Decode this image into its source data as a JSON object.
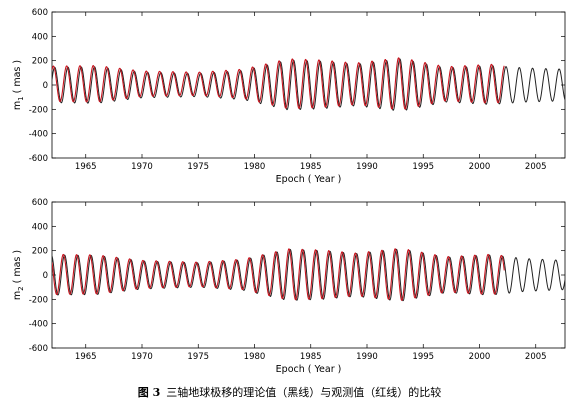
{
  "caption": {
    "figure_number": "图 3",
    "text": "三轴地球极移的理论值（黑线）与观测值（红线）的比较"
  },
  "series_colors": {
    "theoretical": "#222222",
    "observed": "#c8141e"
  },
  "chart_data": [
    {
      "type": "line",
      "title": "",
      "xlabel": "Epoch ( Year )",
      "ylabel": "m1 ( mas )",
      "ylabel_main": "m",
      "ylabel_sub": "1",
      "ylabel_unit": " ( mas )",
      "xlim": [
        1962,
        2007.6
      ],
      "ylim": [
        -600,
        600
      ],
      "xticks": [
        1965,
        1970,
        1975,
        1980,
        1985,
        1990,
        1995,
        2000,
        2005
      ],
      "yticks": [
        -600,
        -400,
        -200,
        0,
        200,
        400,
        600
      ],
      "grid": false,
      "legend": "none",
      "series": [
        {
          "key": "theoretical",
          "x_range": [
            1962,
            2007.6
          ],
          "envelope_x": [
            1962,
            1966,
            1970,
            1975,
            1979,
            1983,
            1986,
            1989,
            1993,
            1997,
            2001,
            2004,
            2007.6
          ],
          "envelope_amp": [
            145,
            150,
            105,
            95,
            120,
            205,
            195,
            170,
            215,
            140,
            160,
            140,
            130
          ],
          "period_years": 1.18,
          "offset": 0,
          "phase": 0.3
        },
        {
          "key": "observed",
          "x_range": [
            1962,
            2002.2
          ],
          "envelope_x": [
            1962,
            1966,
            1970,
            1975,
            1979,
            1983,
            1986,
            1989,
            1993,
            1997,
            2001,
            2004,
            2007.6
          ],
          "envelope_amp": [
            145,
            150,
            105,
            95,
            120,
            205,
            195,
            170,
            215,
            140,
            160,
            140,
            130
          ],
          "period_years": 1.18,
          "offset": 10,
          "phase": 0.9
        }
      ]
    },
    {
      "type": "line",
      "title": "",
      "xlabel": "Epoch ( Year )",
      "ylabel": "m2 ( mas )",
      "ylabel_main": "m",
      "ylabel_sub": "2",
      "ylabel_unit": " ( mas )",
      "xlim": [
        1962,
        2007.6
      ],
      "ylim": [
        -600,
        600
      ],
      "xticks": [
        1965,
        1970,
        1975,
        1980,
        1985,
        1990,
        1995,
        2000,
        2005
      ],
      "yticks": [
        -600,
        -400,
        -200,
        0,
        200,
        400,
        600
      ],
      "grid": false,
      "legend": "none",
      "series": [
        {
          "key": "theoretical",
          "x_range": [
            1962,
            2007.6
          ],
          "envelope_x": [
            1962,
            1966,
            1970,
            1975,
            1979,
            1983,
            1986,
            1989,
            1993,
            1997,
            2001,
            2004,
            2007.6
          ],
          "envelope_amp": [
            165,
            160,
            115,
            100,
            125,
            210,
            200,
            175,
            215,
            145,
            165,
            135,
            120
          ],
          "period_years": 1.18,
          "offset": 0,
          "phase": 1.9
        },
        {
          "key": "observed",
          "x_range": [
            1962,
            2002.2
          ],
          "envelope_x": [
            1962,
            1966,
            1970,
            1975,
            1979,
            1983,
            1986,
            1989,
            1993,
            1997,
            2001,
            2004,
            2007.6
          ],
          "envelope_amp": [
            165,
            160,
            115,
            100,
            125,
            210,
            200,
            175,
            215,
            145,
            165,
            135,
            120
          ],
          "period_years": 1.18,
          "offset": 5,
          "phase": 2.5
        }
      ]
    }
  ]
}
